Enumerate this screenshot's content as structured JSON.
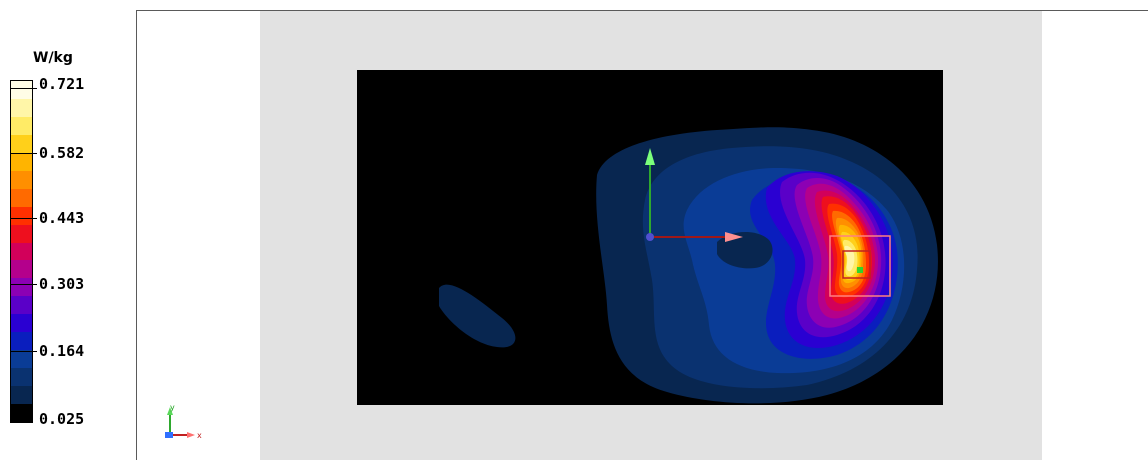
{
  "legend": {
    "unit": "W/kg",
    "ticks": [
      "0.721",
      "0.582",
      "0.443",
      "0.303",
      "0.164",
      "0.025"
    ],
    "colors": [
      "#fffde6",
      "#fff6a8",
      "#ffeb66",
      "#ffd01a",
      "#ffb400",
      "#ff8f00",
      "#ff6a00",
      "#ff3000",
      "#ee0f1e",
      "#d2005a",
      "#b4008c",
      "#8c00b4",
      "#5a00c8",
      "#2a00d2",
      "#0a1ebe",
      "#0a3c96",
      "#0a3270",
      "#082650",
      "#000000"
    ]
  },
  "axis_triad": {
    "x_label": "x",
    "y_label": "y"
  }
}
